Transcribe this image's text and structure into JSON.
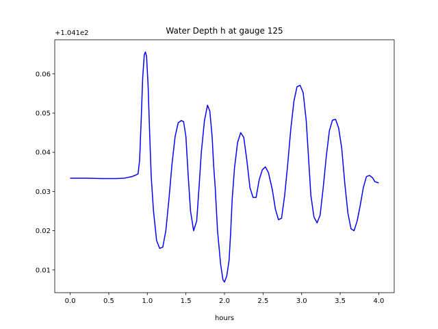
{
  "chart_data": {
    "type": "line",
    "title": "Water Depth h at gauge 125",
    "xlabel": "hours",
    "ylabel": "",
    "offset_text": "+1.041e2",
    "xlim": [
      -0.2,
      4.2
    ],
    "ylim": [
      0.0042,
      0.0687
    ],
    "x_ticks": [
      0.0,
      0.5,
      1.0,
      1.5,
      2.0,
      2.5,
      3.0,
      3.5,
      4.0
    ],
    "x_tick_labels": [
      "0.0",
      "0.5",
      "1.0",
      "1.5",
      "2.0",
      "2.5",
      "3.0",
      "3.5",
      "4.0"
    ],
    "y_ticks": [
      0.01,
      0.02,
      0.03,
      0.04,
      0.05,
      0.06
    ],
    "y_tick_labels": [
      "0.01",
      "0.02",
      "0.03",
      "0.04",
      "0.05",
      "0.06"
    ],
    "grid": false,
    "line_color": "#0000ff",
    "series": [
      {
        "x": [
          0.0,
          0.2,
          0.4,
          0.6,
          0.7,
          0.8,
          0.85,
          0.88,
          0.9,
          0.92,
          0.94,
          0.96,
          0.975,
          0.99,
          1.01,
          1.03,
          1.05,
          1.08,
          1.12,
          1.16,
          1.2,
          1.24,
          1.28,
          1.32,
          1.36,
          1.4,
          1.44,
          1.47,
          1.5,
          1.53,
          1.56,
          1.6,
          1.64,
          1.67,
          1.7,
          1.74,
          1.78,
          1.81,
          1.84,
          1.86,
          1.88,
          1.91,
          1.95,
          1.98,
          2.0,
          2.03,
          2.06,
          2.08,
          2.1,
          2.13,
          2.17,
          2.21,
          2.25,
          2.29,
          2.33,
          2.37,
          2.41,
          2.45,
          2.49,
          2.53,
          2.57,
          2.62,
          2.66,
          2.7,
          2.74,
          2.78,
          2.82,
          2.86,
          2.9,
          2.94,
          2.98,
          3.02,
          3.06,
          3.09,
          3.12,
          3.16,
          3.2,
          3.24,
          3.28,
          3.32,
          3.36,
          3.4,
          3.44,
          3.48,
          3.52,
          3.56,
          3.6,
          3.64,
          3.68,
          3.72,
          3.76,
          3.8,
          3.84,
          3.88,
          3.92,
          3.95,
          3.98,
          4.0
        ],
        "y": [
          0.0334,
          0.0334,
          0.0333,
          0.0333,
          0.0334,
          0.0338,
          0.0342,
          0.0345,
          0.038,
          0.048,
          0.059,
          0.0648,
          0.0656,
          0.0645,
          0.057,
          0.045,
          0.034,
          0.025,
          0.0175,
          0.0155,
          0.0158,
          0.02,
          0.028,
          0.037,
          0.044,
          0.0475,
          0.0481,
          0.0478,
          0.044,
          0.034,
          0.025,
          0.02,
          0.0225,
          0.031,
          0.04,
          0.048,
          0.052,
          0.0505,
          0.044,
          0.0365,
          0.031,
          0.02,
          0.0115,
          0.0075,
          0.0069,
          0.0085,
          0.0125,
          0.0195,
          0.028,
          0.036,
          0.0425,
          0.045,
          0.0438,
          0.038,
          0.031,
          0.0285,
          0.0285,
          0.033,
          0.0355,
          0.0363,
          0.0348,
          0.0305,
          0.0255,
          0.0228,
          0.0232,
          0.029,
          0.037,
          0.046,
          0.053,
          0.0567,
          0.0571,
          0.0552,
          0.048,
          0.0385,
          0.029,
          0.0235,
          0.022,
          0.024,
          0.031,
          0.039,
          0.0455,
          0.0482,
          0.0484,
          0.0462,
          0.041,
          0.032,
          0.0245,
          0.0205,
          0.02,
          0.0225,
          0.0265,
          0.031,
          0.0338,
          0.0341,
          0.0335,
          0.0325,
          0.0323,
          0.0322
        ]
      }
    ]
  }
}
